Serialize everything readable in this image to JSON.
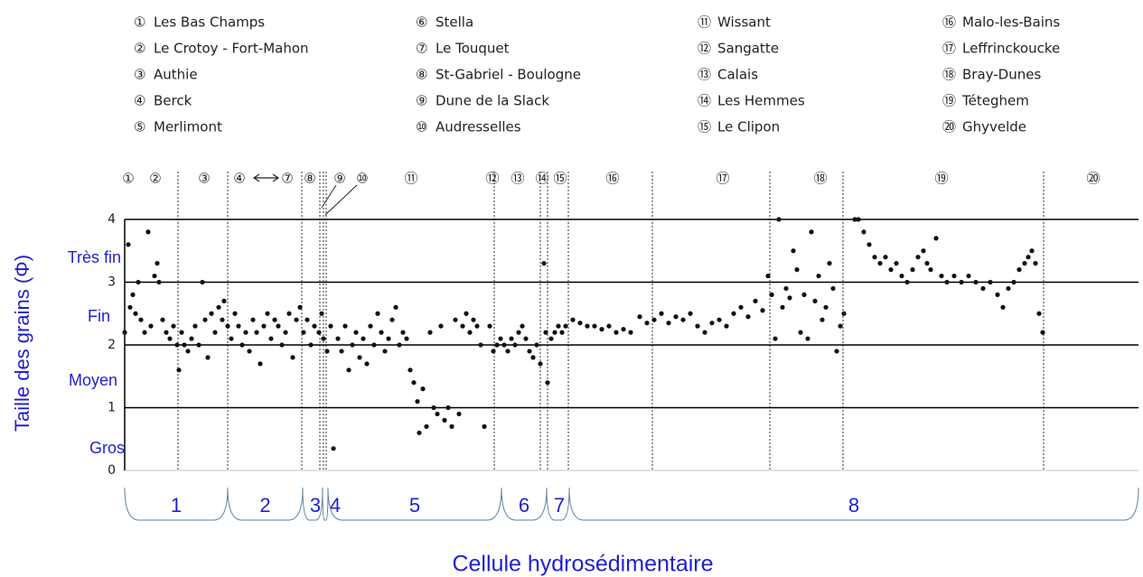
{
  "chart_data": {
    "type": "scatter",
    "legend": [
      {
        "marker": "①",
        "name": "Les Bas Champs"
      },
      {
        "marker": "②",
        "name": "Le Crotoy - Fort-Mahon"
      },
      {
        "marker": "③",
        "name": "Authie"
      },
      {
        "marker": "④",
        "name": "Berck"
      },
      {
        "marker": "⑤",
        "name": "Merlimont"
      },
      {
        "marker": "⑥",
        "name": "Stella"
      },
      {
        "marker": "⑦",
        "name": "Le Touquet"
      },
      {
        "marker": "⑧",
        "name": "St-Gabriel - Boulogne"
      },
      {
        "marker": "⑨",
        "name": "Dune de la Slack"
      },
      {
        "marker": "⑩",
        "name": "Audresselles"
      },
      {
        "marker": "⑪",
        "name": "Wissant"
      },
      {
        "marker": "⑫",
        "name": "Sangatte"
      },
      {
        "marker": "⑬",
        "name": "Calais"
      },
      {
        "marker": "⑭",
        "name": "Les Hemmes"
      },
      {
        "marker": "⑮",
        "name": "Le Clipon"
      },
      {
        "marker": "⑯",
        "name": "Malo-les-Bains"
      },
      {
        "marker": "⑰",
        "name": "Leffrinckoucke"
      },
      {
        "marker": "⑱",
        "name": "Bray-Dunes"
      },
      {
        "marker": "⑲",
        "name": "Téteghem"
      },
      {
        "marker": "⑳",
        "name": "Ghyvelde"
      }
    ],
    "top_labels": [
      {
        "label": "①",
        "x": 4
      },
      {
        "label": "②",
        "x": 34
      },
      {
        "label": "③",
        "x": 88
      },
      {
        "label": "④",
        "x": 127
      },
      {
        "label": "⑦",
        "x": 180
      },
      {
        "label": "⑧",
        "x": 205
      },
      {
        "label": "⑨",
        "x": 238
      },
      {
        "label": "⑩",
        "x": 263
      },
      {
        "label": "⑪",
        "x": 317
      },
      {
        "label": "⑫",
        "x": 407
      },
      {
        "label": "⑬",
        "x": 435
      },
      {
        "label": "⑭",
        "x": 462
      },
      {
        "label": "⑮",
        "x": 482
      },
      {
        "label": "⑯",
        "x": 540
      },
      {
        "label": "⑰",
        "x": 662
      },
      {
        "label": "⑱",
        "x": 770
      },
      {
        "label": "⑲",
        "x": 904
      },
      {
        "label": "⑳",
        "x": 1072
      }
    ],
    "boundaries": [
      59,
      114,
      196,
      216,
      220,
      223,
      409,
      460,
      468,
      491,
      584,
      714,
      795,
      1017
    ],
    "y_label": "Taille des grains (Φ)",
    "x_label": "Cellule hydrosédimentaire",
    "class_labels": [
      "Très fin",
      "Fin",
      "Moyen",
      "Gros"
    ],
    "cells": [
      {
        "label": "1",
        "from": 0,
        "to": 114
      },
      {
        "label": "2",
        "from": 114,
        "to": 197
      },
      {
        "label": "3",
        "from": 197,
        "to": 219
      },
      {
        "label": "4",
        "from": 219,
        "to": 225
      },
      {
        "label": "5",
        "from": 225,
        "to": 417
      },
      {
        "label": "6",
        "from": 417,
        "to": 467
      },
      {
        "label": "7",
        "from": 467,
        "to": 492
      },
      {
        "label": "8",
        "from": 492,
        "to": 1122
      }
    ],
    "xlim": [
      0,
      1122
    ],
    "ylim": [
      0,
      4
    ],
    "yticks": [
      0,
      1,
      2,
      3,
      4
    ],
    "color": "#111111",
    "x": [
      0,
      4,
      6,
      9,
      12,
      15,
      18,
      22,
      26,
      29,
      33,
      36,
      38,
      42,
      46,
      50,
      54,
      58,
      60,
      63,
      66,
      70,
      74,
      78,
      82,
      86,
      89,
      92,
      96,
      100,
      104,
      108,
      110,
      114,
      118,
      122,
      126,
      130,
      134,
      138,
      142,
      146,
      150,
      154,
      158,
      162,
      166,
      170,
      174,
      178,
      182,
      186,
      190,
      194,
      198,
      202,
      206,
      210,
      215,
      218,
      220,
      224,
      228,
      231,
      236,
      240,
      244,
      248,
      252,
      256,
      260,
      264,
      268,
      272,
      276,
      280,
      284,
      288,
      292,
      296,
      300,
      304,
      308,
      312,
      316,
      320,
      324,
      326,
      330,
      334,
      338,
      342,
      346,
      350,
      354,
      358,
      362,
      366,
      370,
      374,
      378,
      382,
      386,
      390,
      394,
      398,
      404,
      408,
      412,
      416,
      420,
      424,
      428,
      432,
      436,
      440,
      444,
      448,
      452,
      456,
      460,
      464,
      466,
      468,
      472,
      476,
      480,
      484,
      488,
      496,
      504,
      512,
      520,
      528,
      536,
      544,
      552,
      560,
      570,
      578,
      586,
      594,
      602,
      610,
      618,
      626,
      634,
      642,
      650,
      658,
      666,
      674,
      682,
      690,
      698,
      706,
      712,
      716,
      720,
      724,
      728,
      732,
      736,
      740,
      744,
      748,
      752,
      756,
      760,
      764,
      768,
      772,
      776,
      780,
      784,
      788,
      792,
      796,
      808,
      812,
      818,
      824,
      830,
      836,
      842,
      848,
      854,
      860,
      866,
      872,
      878,
      884,
      888,
      892,
      898,
      904,
      910,
      918,
      926,
      934,
      942,
      950,
      958,
      966,
      972,
      978,
      984,
      990,
      996,
      1000,
      1004,
      1008,
      1012,
      1016
    ],
    "values": [
      2.2,
      3.6,
      2.6,
      2.8,
      2.5,
      3.0,
      2.4,
      2.2,
      3.8,
      2.3,
      3.1,
      3.3,
      3.0,
      2.4,
      2.2,
      2.1,
      2.3,
      2.0,
      1.6,
      2.2,
      2.0,
      1.9,
      2.1,
      2.3,
      2.0,
      3.0,
      2.4,
      1.8,
      2.5,
      2.2,
      2.6,
      2.4,
      2.7,
      2.3,
      2.1,
      2.5,
      2.3,
      2.0,
      2.2,
      1.9,
      2.4,
      2.2,
      1.7,
      2.3,
      2.5,
      2.1,
      2.4,
      2.3,
      2.0,
      2.2,
      2.5,
      1.8,
      2.4,
      2.6,
      2.2,
      2.4,
      2.0,
      2.3,
      2.2,
      2.5,
      2.1,
      1.9,
      2.3,
      0.35,
      2.1,
      1.9,
      2.3,
      1.6,
      2.0,
      2.2,
      1.8,
      2.1,
      1.7,
      2.3,
      2.0,
      2.5,
      2.2,
      1.9,
      2.1,
      2.4,
      2.6,
      2.0,
      2.2,
      2.1,
      1.6,
      1.4,
      1.1,
      0.6,
      1.3,
      0.7,
      2.2,
      1.0,
      0.9,
      2.3,
      0.8,
      1.0,
      0.7,
      2.4,
      0.9,
      2.3,
      2.5,
      2.2,
      2.4,
      2.3,
      2.0,
      0.7,
      2.3,
      1.9,
      2.0,
      2.1,
      2.0,
      1.9,
      2.1,
      2.0,
      2.2,
      2.3,
      2.1,
      1.9,
      1.8,
      2.0,
      1.7,
      3.3,
      2.2,
      1.4,
      2.1,
      2.2,
      2.3,
      2.2,
      2.3,
      2.4,
      2.35,
      2.3,
      2.3,
      2.25,
      2.3,
      2.2,
      2.25,
      2.2,
      2.45,
      2.35,
      2.4,
      2.5,
      2.35,
      2.45,
      2.4,
      2.5,
      2.3,
      2.2,
      2.35,
      2.4,
      2.3,
      2.5,
      2.6,
      2.45,
      2.7,
      2.55,
      3.1,
      2.8,
      2.1,
      4.0,
      2.6,
      2.9,
      2.75,
      3.5,
      3.2,
      2.2,
      2.8,
      2.1,
      3.8,
      2.7,
      3.1,
      2.4,
      2.6,
      3.3,
      2.9,
      1.9,
      2.3,
      2.5,
      4.0,
      4.0,
      3.8,
      3.6,
      3.4,
      3.3,
      3.4,
      3.2,
      3.3,
      3.1,
      3.0,
      3.2,
      3.4,
      3.5,
      3.3,
      3.2,
      3.7,
      3.1,
      3.0,
      3.1,
      3.0,
      3.1,
      3.0,
      2.9,
      3.0,
      2.8,
      2.6,
      2.9,
      3.0,
      3.2,
      3.3,
      3.4,
      3.5,
      3.3,
      2.5,
      2.2
    ]
  }
}
